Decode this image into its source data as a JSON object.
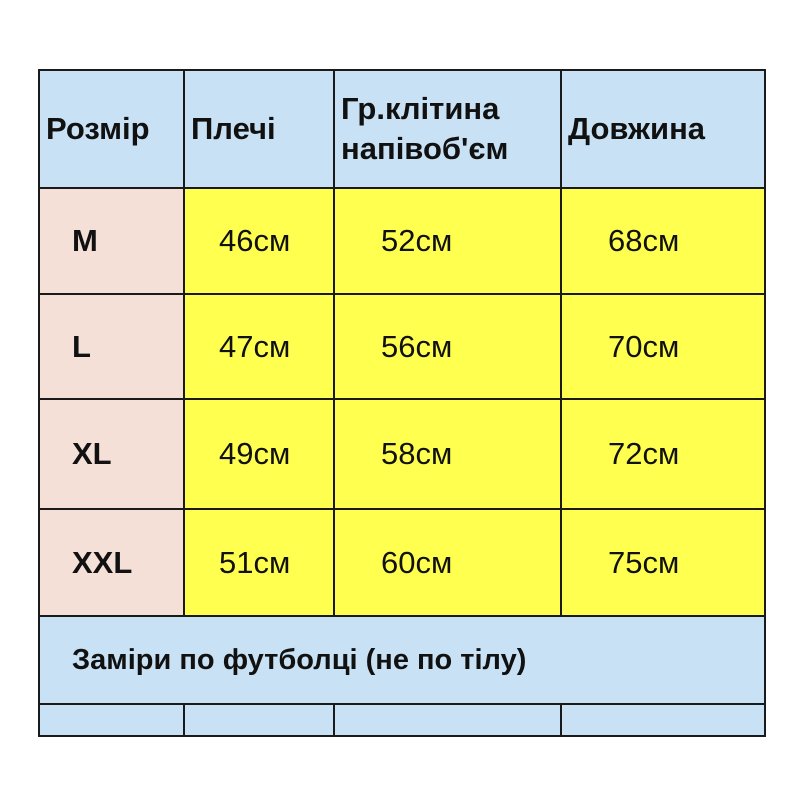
{
  "colors": {
    "header": "#c8e1f4",
    "size_column": "#f5e0d8",
    "values": "#ffff4f",
    "border": "#1a1a1a"
  },
  "headers": [
    "Розмір",
    "Плечі",
    "Гр.клітина напівоб'єм",
    "Довжина"
  ],
  "rows": [
    {
      "size": "M",
      "shoulders": "46см",
      "chest": "52см",
      "length": "68см"
    },
    {
      "size": "L",
      "shoulders": "47см",
      "chest": "56см",
      "length": "70см"
    },
    {
      "size": "XL",
      "shoulders": "49см",
      "chest": "58см",
      "length": "72см"
    },
    {
      "size": "XXL",
      "shoulders": "51см",
      "chest": "60см",
      "length": "75см"
    }
  ],
  "note": "Заміри по футболці (не по тілу)"
}
